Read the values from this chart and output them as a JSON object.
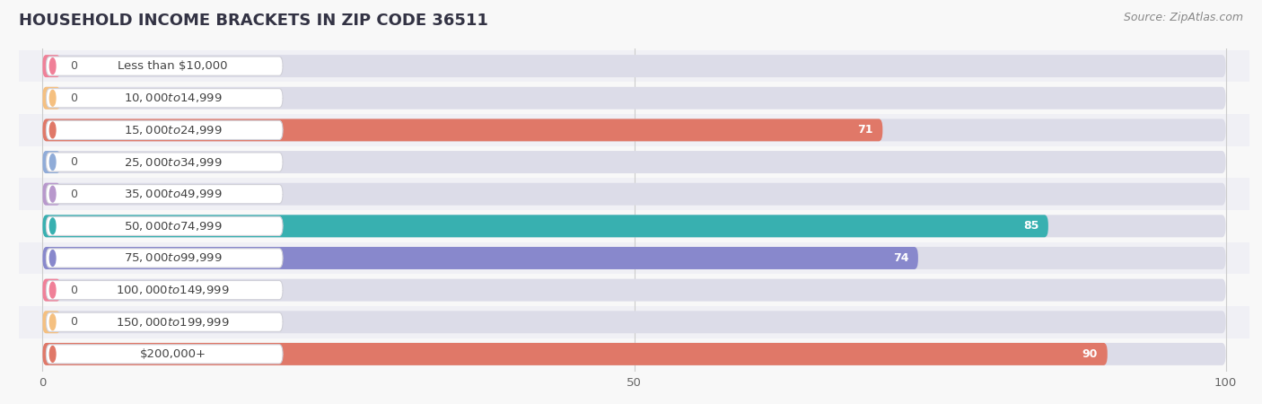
{
  "title": "HOUSEHOLD INCOME BRACKETS IN ZIP CODE 36511",
  "source": "Source: ZipAtlas.com",
  "categories": [
    "Less than $10,000",
    "$10,000 to $14,999",
    "$15,000 to $24,999",
    "$25,000 to $34,999",
    "$35,000 to $49,999",
    "$50,000 to $74,999",
    "$75,000 to $99,999",
    "$100,000 to $149,999",
    "$150,000 to $199,999",
    "$200,000+"
  ],
  "values": [
    0,
    0,
    71,
    0,
    0,
    85,
    74,
    0,
    0,
    90
  ],
  "bar_colors": [
    "#f08098",
    "#f5c080",
    "#e07868",
    "#90acd8",
    "#b898cc",
    "#38b0b0",
    "#8888cc",
    "#f08098",
    "#f5c080",
    "#e07868"
  ],
  "label_bg_colors": [
    "#ffffff",
    "#ffffff",
    "#ffffff",
    "#ffffff",
    "#ffffff",
    "#ffffff",
    "#ffffff",
    "#ffffff",
    "#ffffff",
    "#ffffff"
  ],
  "row_bg_colors": [
    "#f0f0f5",
    "#f8f8f8",
    "#f0f0f5",
    "#f8f8f8",
    "#f0f0f5",
    "#f8f8f8",
    "#f0f0f5",
    "#f8f8f8",
    "#f0f0f5",
    "#f8f8f8"
  ],
  "xlim": [
    0,
    100
  ],
  "xticks": [
    0,
    50,
    100
  ],
  "background_color": "#f8f8f8",
  "title_fontsize": 13,
  "source_fontsize": 9,
  "label_fontsize": 9.5,
  "value_fontsize": 9
}
